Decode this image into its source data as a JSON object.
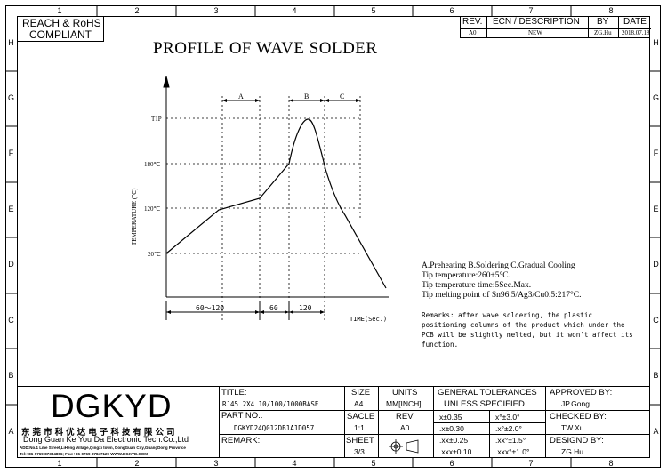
{
  "compliance": {
    "line1": "REACH & RoHS",
    "line2": "COMPLIANT"
  },
  "zones": {
    "columns": [
      "1",
      "2",
      "3",
      "4",
      "5",
      "6",
      "7",
      "8"
    ],
    "rows": [
      "H",
      "G",
      "F",
      "E",
      "D",
      "C",
      "B",
      "A"
    ]
  },
  "revision_table": {
    "headers": {
      "rev": "REV.",
      "ecn": "ECN / DESCRIPTION",
      "by": "BY",
      "date": "DATE"
    },
    "row": {
      "rev": "A0",
      "ecn": "NEW",
      "by": "ZG.Hu",
      "date": "2018.07.18"
    }
  },
  "drawing": {
    "title": "PROFILE OF WAVE SOLDER",
    "y_axis_label": "TEMPERATURE (℃)",
    "x_axis_label": "TIME(Sec.)",
    "y_ticks": [
      "T1P",
      "180℃",
      "120℃",
      "20℃"
    ],
    "zone_labels": [
      "A",
      "B",
      "C"
    ],
    "time_segments": [
      "60～120",
      "60",
      "120"
    ]
  },
  "notes": {
    "legend": "A.Preheating  B.Soldering  C.Gradual Cooling",
    "line1": "Tip temperature:260±5°C.",
    "line2": "Tip temperature time:5Sec.Max.",
    "line3": "Tip melting point of Sn96.5/Ag3/Cu0.5:217°C.",
    "remark1": "Remarks: after wave soldering, the plastic",
    "remark2": "positioning columns of the product  which under the",
    "remark3": "PCB will be slightly melted, but it won't affect its",
    "remark4": "function."
  },
  "company": {
    "logo": "DGKYD",
    "name_cn": "东 莞 市 科 优 达 电 子 科 技 有 限 公 司",
    "name_en": "Dong Guan Ke You Da Electronic Tech.Co.,Ltd",
    "address": "ADD:No.1 Lihe Street,LiHeng Village,Qingxi town, DongGuan City,GuangDong Province",
    "contact": "Tel:+86-0769-87334806; Fax:+86-0769-87847129  WWW.DGKYD.COM"
  },
  "title_block": {
    "title_label": "TITLE:",
    "title_value": "RJ45 2X4 10/100/1000BASE",
    "part_label": "PART NO.:",
    "part_value": "DGKYD24Q012DB1A1D057",
    "remark_label": "REMARK:",
    "size_label": "SIZE",
    "size_value": "A4",
    "scale_label": "SACLE",
    "scale_value": "1:1",
    "sheet_label": "SHEET",
    "sheet_value": "3/3",
    "units_label": "UNITS",
    "units_value": "MM[INCH]",
    "rev_label": "REV",
    "rev_value": "A0",
    "tol_label1": "GENERAL TOLERANCES",
    "tol_label2": "UNLESS SPECIFIED",
    "tol": [
      {
        "lin": "x±0.35",
        "ang": "x°±3.0°"
      },
      {
        "lin": ".x±0.30",
        "ang": ".x°±2.0°"
      },
      {
        "lin": ".xx±0.25",
        "ang": ".xx°±1.5°"
      },
      {
        "lin": ".xxx±0.10",
        "ang": ".xxx°±1.0°"
      }
    ],
    "approved_label": "APPROVED BY:",
    "approved_value": "JP.Gong",
    "checked_label": "CHECKED BY:",
    "checked_value": "TW.Xu",
    "designed_label": "DESIGND BY:",
    "designed_value": "ZG.Hu"
  }
}
